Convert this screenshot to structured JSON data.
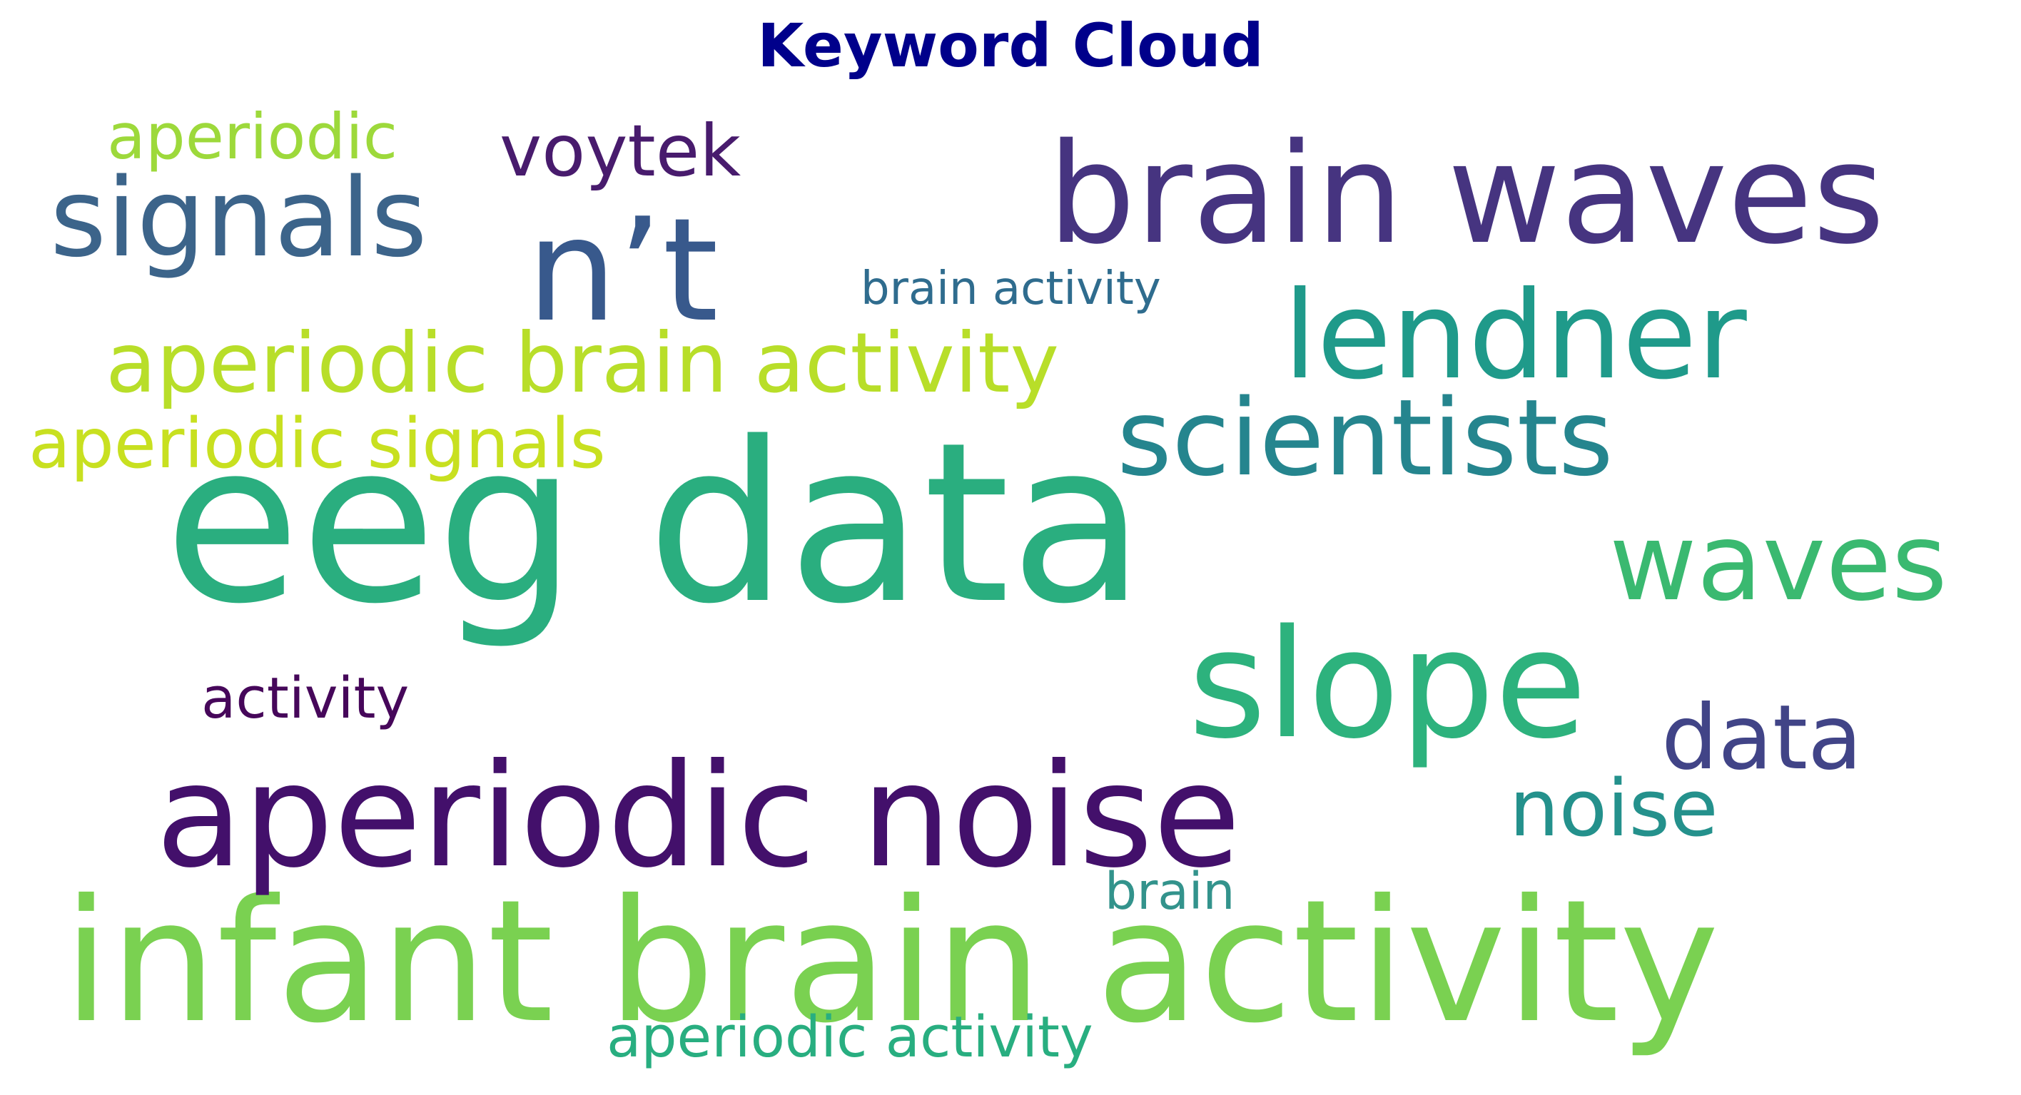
{
  "title": "Keyword Cloud",
  "title_color": "#00008b",
  "words": [
    {
      "text": "eeg data",
      "color": "#2aae7f"
    },
    {
      "text": "infant brain activity",
      "color": "#7ad151"
    },
    {
      "text": "aperiodic noise",
      "color": "#43106b"
    },
    {
      "text": "brain waves",
      "color": "#463480"
    },
    {
      "text": "n’t",
      "color": "#38598c"
    },
    {
      "text": "slope",
      "color": "#2db27d"
    },
    {
      "text": "signals",
      "color": "#3c648a"
    },
    {
      "text": "lendner",
      "color": "#1f9a8a"
    },
    {
      "text": "scientists",
      "color": "#25858e"
    },
    {
      "text": "waves",
      "color": "#3ab970"
    },
    {
      "text": "aperiodic brain activity",
      "color": "#b8de29"
    },
    {
      "text": "data",
      "color": "#414487"
    },
    {
      "text": "noise",
      "color": "#24918c"
    },
    {
      "text": "voytek",
      "color": "#481b6d"
    },
    {
      "text": "aperiodic signals",
      "color": "#c8e020"
    },
    {
      "text": "aperiodic",
      "color": "#9dd93b"
    },
    {
      "text": "activity",
      "color": "#46075a"
    },
    {
      "text": "aperiodic activity",
      "color": "#28ae80"
    },
    {
      "text": "brain activity",
      "color": "#2f6c8e"
    },
    {
      "text": "brain",
      "color": "#33938c"
    }
  ]
}
